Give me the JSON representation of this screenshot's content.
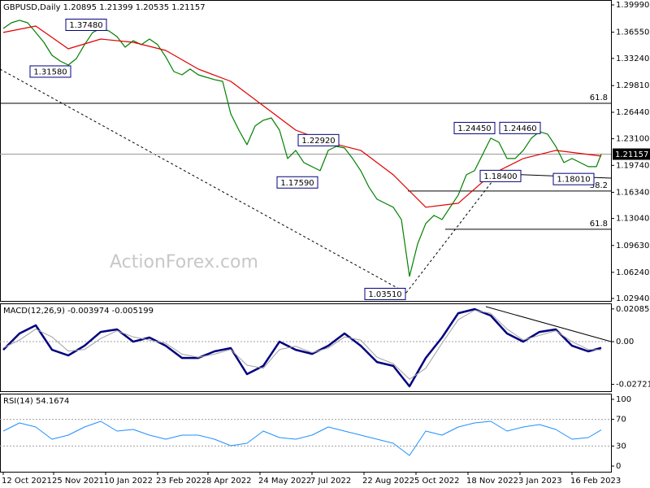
{
  "chart_data": [
    {
      "type": "line",
      "title": "GBPUSD,Daily  1.20895 1.21399 1.20535 1.21157",
      "watermark": "ActionForex.com",
      "xlim": [
        -2,
        374
      ],
      "ylim": [
        1.0263,
        1.4061
      ],
      "xticks": [
        {
          "value": 0,
          "label": "12 Oct 2021"
        },
        {
          "value": 31,
          "label": "25 Nov 2021"
        },
        {
          "value": 63,
          "label": "10 Jan 2022"
        },
        {
          "value": 95,
          "label": "23 Feb 2022"
        },
        {
          "value": 126,
          "label": "8 Apr 2022"
        },
        {
          "value": 158,
          "label": "24 May 2022"
        },
        {
          "value": 190,
          "label": "7 Jul 2022"
        },
        {
          "value": 222,
          "label": "22 Aug 2022"
        },
        {
          "value": 254,
          "label": "5 Oct 2022"
        },
        {
          "value": 286,
          "label": "18 Nov 2022"
        },
        {
          "value": 318,
          "label": "3 Jan 2023"
        },
        {
          "value": 350,
          "label": "16 Feb 2023"
        }
      ],
      "yticks": [
        {
          "value": 1.3999,
          "label": "1.39990"
        },
        {
          "value": 1.3655,
          "label": "1.36550"
        },
        {
          "value": 1.3324,
          "label": "1.33240"
        },
        {
          "value": 1.2981,
          "label": "1.29810"
        },
        {
          "value": 1.2644,
          "label": "1.26440"
        },
        {
          "value": 1.231,
          "label": "1.23100"
        },
        {
          "value": 1.1974,
          "label": "1.19740"
        },
        {
          "value": 1.1634,
          "label": "1.16340"
        },
        {
          "value": 1.1304,
          "label": "1.13040"
        },
        {
          "value": 1.0963,
          "label": "1.09630"
        },
        {
          "value": 1.0624,
          "label": "1.06240"
        },
        {
          "value": 1.0294,
          "label": "1.02940"
        }
      ],
      "last_price": {
        "value": 1.21157,
        "label": "1.21157"
      },
      "series": [
        {
          "color": "#008000",
          "x": [
            0,
            5,
            10,
            15,
            20,
            25,
            30,
            35,
            40,
            45,
            50,
            55,
            60,
            65,
            70,
            75,
            80,
            85,
            90,
            95,
            100,
            105,
            110,
            115,
            120,
            125,
            130,
            135,
            140,
            145,
            150,
            155,
            160,
            165,
            170,
            175,
            180,
            185,
            190,
            195,
            200,
            205,
            210,
            215,
            220,
            225,
            230,
            235,
            240,
            245,
            250,
            255,
            260,
            265,
            270,
            275,
            280,
            285,
            290,
            295,
            300,
            305,
            310,
            315,
            320,
            325,
            330,
            335,
            340,
            345,
            350,
            355,
            360,
            365,
            368
          ],
          "values": [
            1.3702,
            1.3774,
            1.3805,
            1.3774,
            1.3651,
            1.3527,
            1.3363,
            1.3291,
            1.324,
            1.3322,
            1.3497,
            1.3651,
            1.3702,
            1.3671,
            1.3599,
            1.3466,
            1.3548,
            1.3497,
            1.3568,
            1.3497,
            1.3343,
            1.3158,
            1.3117,
            1.3189,
            1.3117,
            1.3086,
            1.3056,
            1.3035,
            1.2625,
            1.2419,
            1.2235,
            1.2471,
            1.2543,
            1.2573,
            1.2419,
            1.206,
            1.2163,
            1.2009,
            1.1958,
            1.1906,
            1.2163,
            1.2214,
            1.2194,
            1.206,
            1.1906,
            1.1701,
            1.1547,
            1.1496,
            1.1445,
            1.1291,
            1.0573,
            1.0983,
            1.124,
            1.1342,
            1.1291,
            1.1445,
            1.1599,
            1.1855,
            1.1906,
            1.2112,
            1.2317,
            1.2266,
            1.206,
            1.206,
            1.2163,
            1.2317,
            1.2399,
            1.2368,
            1.2214,
            1.2009,
            1.206,
            1.2009,
            1.1958,
            1.1958,
            1.2116
          ]
        },
        {
          "color": "#e00000",
          "x": [
            0,
            20,
            40,
            60,
            80,
            100,
            120,
            140,
            160,
            180,
            200,
            220,
            240,
            260,
            280,
            300,
            320,
            340,
            360,
            368
          ],
          "values": [
            1.3651,
            1.3733,
            1.3445,
            1.3568,
            1.3527,
            1.3425,
            1.3189,
            1.3035,
            1.2727,
            1.2419,
            1.2266,
            1.2163,
            1.1855,
            1.1445,
            1.1496,
            1.1855,
            1.206,
            1.2163,
            1.2112,
            1.2091
          ]
        }
      ],
      "annotations": [
        {
          "value": 1.3748,
          "label": "1.37480",
          "x": 65
        },
        {
          "value": 1.3158,
          "label": "1.31580",
          "x": 43
        },
        {
          "value": 1.2292,
          "label": "1.22920",
          "x": 208
        },
        {
          "value": 1.1759,
          "label": "1.17590",
          "x": 195
        },
        {
          "value": 1.0351,
          "label": "1.03510",
          "x": 249
        },
        {
          "value": 1.2445,
          "label": "1.24450",
          "x": 304
        },
        {
          "value": 1.2446,
          "label": "1.24460",
          "x": 332
        },
        {
          "value": 1.184,
          "label": "1.18400",
          "x": 320
        },
        {
          "value": 1.1801,
          "label": "1.18010",
          "x": 365
        }
      ],
      "fib_levels": [
        {
          "ratio": 61.8,
          "price": 1.2758
        },
        {
          "ratio": 38.2,
          "price": 1.165
        },
        {
          "ratio": 61.8,
          "price": 1.1168
        }
      ]
    },
    {
      "type": "line",
      "title": "MACD(12,26,9) -0.003974 -0.005199",
      "ylim": [
        -0.0316,
        0.0244
      ],
      "yticks": [
        0.020858,
        {
          "value": 0,
          "label": "0.00"
        },
        -0.027213
      ],
      "levels": [
        0
      ],
      "series": [
        {
          "color": "#000080",
          "width": 2.5,
          "x": [
            0,
            10,
            20,
            30,
            40,
            50,
            60,
            70,
            80,
            90,
            100,
            110,
            120,
            130,
            140,
            150,
            160,
            170,
            180,
            190,
            200,
            210,
            220,
            230,
            240,
            250,
            260,
            270,
            280,
            290,
            300,
            310,
            320,
            330,
            340,
            350,
            360,
            368
          ],
          "values": [
            -0.0052,
            0.0052,
            0.0104,
            -0.0052,
            -0.0088,
            -0.0026,
            0.0062,
            0.0078,
            0,
            0.0026,
            -0.0026,
            -0.0104,
            -0.0104,
            -0.0062,
            -0.0041,
            -0.0207,
            -0.0155,
            0,
            -0.0052,
            -0.0078,
            -0.0026,
            0.0052,
            -0.0026,
            -0.013,
            -0.0155,
            -0.0285,
            -0.0104,
            0.0026,
            0.0181,
            0.0207,
            0.0166,
            0.0052,
            0,
            0.0062,
            0.0078,
            -0.0026,
            -0.0062,
            -0.003974
          ]
        },
        {
          "color": "#a0a0a0",
          "width": 1,
          "x": [
            0,
            10,
            20,
            30,
            40,
            50,
            60,
            70,
            80,
            90,
            100,
            110,
            120,
            130,
            140,
            150,
            160,
            170,
            180,
            190,
            200,
            210,
            220,
            230,
            240,
            250,
            260,
            270,
            280,
            290,
            300,
            310,
            320,
            330,
            340,
            350,
            360,
            368
          ],
          "values": [
            -0.004,
            0.001,
            0.008,
            0.003,
            -0.006,
            -0.005,
            0.002,
            0.007,
            0.003,
            0.001,
            -0.001,
            -0.008,
            -0.01,
            -0.008,
            -0.005,
            -0.015,
            -0.017,
            -0.005,
            -0.003,
            -0.007,
            -0.004,
            0.003,
            0.001,
            -0.01,
            -0.014,
            -0.024,
            -0.017,
            -0.001,
            0.014,
            0.02,
            0.018,
            0.008,
            0.001,
            0.004,
            0.007,
            0,
            -0.005,
            -0.005199
          ]
        }
      ]
    },
    {
      "type": "line",
      "title": "RSI(14) 54.1674",
      "ylim": [
        -8.5,
        108.5
      ],
      "yticks": [
        100,
        70,
        30,
        0
      ],
      "levels": [
        70,
        30
      ],
      "series": [
        {
          "color": "#1e90ff",
          "width": 1,
          "x": [
            0,
            10,
            20,
            30,
            40,
            50,
            60,
            70,
            80,
            90,
            100,
            110,
            120,
            130,
            140,
            150,
            160,
            170,
            180,
            190,
            200,
            210,
            220,
            230,
            240,
            250,
            260,
            270,
            280,
            290,
            300,
            310,
            320,
            330,
            340,
            350,
            360,
            368
          ],
          "values": [
            52.4,
            64.6,
            58.5,
            40.2,
            46.3,
            58.5,
            67.1,
            52.4,
            54.9,
            46.3,
            40.2,
            46.3,
            46.3,
            40.2,
            30.5,
            34.1,
            52.4,
            42.7,
            40.2,
            46.3,
            58.5,
            52.4,
            46.3,
            40.2,
            34.1,
            15.9,
            52.4,
            46.3,
            58.5,
            64.6,
            67.1,
            52.4,
            58.5,
            62.2,
            54.9,
            40.2,
            42.7,
            54.1674
          ]
        }
      ]
    }
  ]
}
